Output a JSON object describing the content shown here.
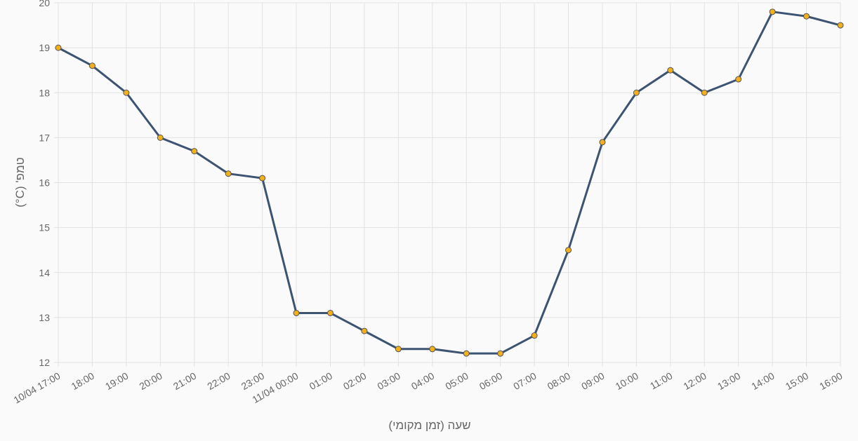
{
  "chart_data": {
    "type": "line",
    "categories": [
      "10/04 17:00",
      "18:00",
      "19:00",
      "20:00",
      "21:00",
      "22:00",
      "23:00",
      "11/04 00:00",
      "01:00",
      "02:00",
      "03:00",
      "04:00",
      "05:00",
      "06:00",
      "07:00",
      "08:00",
      "09:00",
      "10:00",
      "11:00",
      "12:00",
      "13:00",
      "14:00",
      "15:00",
      "16:00"
    ],
    "values": [
      19,
      18.6,
      18,
      17,
      16.7,
      16.2,
      16.1,
      13.1,
      13.1,
      12.7,
      12.3,
      12.3,
      12.2,
      12.2,
      12.6,
      14.5,
      16.9,
      18,
      18.5,
      18,
      18.3,
      19.8,
      19.7,
      19.5
    ],
    "color": "#3d5372",
    "marker_color": "#f2b01e",
    "ylim": [
      12,
      20
    ],
    "yticks": [
      12,
      13,
      14,
      15,
      16,
      17,
      18,
      19,
      20
    ],
    "grid": true,
    "x_label": "שעה (זמן מקומי)",
    "y_label": "טמפ' (C°)"
  }
}
